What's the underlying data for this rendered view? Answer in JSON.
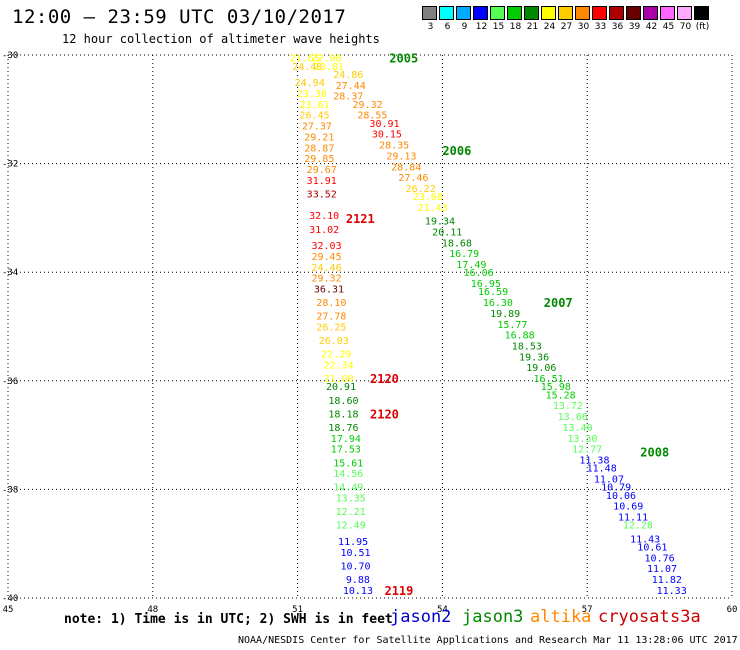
{
  "header": {
    "title": "12:00 – 23:59 UTC 03/10/2017",
    "subtitle": "12 hour collection of altimeter wave heights"
  },
  "colorbar": {
    "labels": [
      "3",
      "6",
      "9",
      "12",
      "15",
      "18",
      "21",
      "24",
      "27",
      "30",
      "33",
      "36",
      "39",
      "42",
      "45",
      "70",
      "(ft)"
    ],
    "colors": [
      "#808080",
      "#00ffff",
      "#00aaff",
      "#0000ff",
      "#55ff55",
      "#00cc00",
      "#008800",
      "#ffff00",
      "#ffcc00",
      "#ff8800",
      "#ff0000",
      "#aa0000",
      "#660000",
      "#aa00aa",
      "#ff66ff",
      "#ffaaff",
      "#000000"
    ]
  },
  "note": "note: 1) Time is in UTC; 2) SWH is in feet",
  "footer": "NOAA/NESDIS Center for Satellite Applications and Research   Mar 11 13:28:06 UTC 2017",
  "legend": [
    {
      "name": "jason2",
      "color": "#0000cc"
    },
    {
      "name": "jason3",
      "color": "#008800"
    },
    {
      "name": "altika",
      "color": "#ff8800"
    },
    {
      "name": "cryosat",
      "color": "#cc0000"
    },
    {
      "name": "s3a",
      "color": "#cc0000"
    }
  ],
  "chart_data": {
    "type": "scatter",
    "x_ticks": [
      45,
      48,
      51,
      54,
      57,
      60
    ],
    "y_ticks": [
      -30,
      -32,
      -34,
      -36,
      -38,
      -40
    ],
    "xlim": [
      45,
      60
    ],
    "ylim": [
      -40,
      -30
    ],
    "grid": true,
    "time_labels": [
      {
        "text": "2005",
        "lon": 52.9,
        "lat": -30.05,
        "color": "#008800"
      },
      {
        "text": "2006",
        "lon": 54.0,
        "lat": -31.75,
        "color": "#008800"
      },
      {
        "text": "2121",
        "lon": 52.0,
        "lat": -33.0,
        "color": "#dd0000"
      },
      {
        "text": "2007",
        "lon": 56.1,
        "lat": -34.55,
        "color": "#008800"
      },
      {
        "text": "2120",
        "lon": 52.5,
        "lat": -35.95,
        "color": "#dd0000"
      },
      {
        "text": "2120",
        "lon": 52.5,
        "lat": -36.6,
        "color": "#dd0000"
      },
      {
        "text": "2008",
        "lon": 58.1,
        "lat": -37.3,
        "color": "#008800"
      },
      {
        "text": "2119",
        "lon": 52.8,
        "lat": -39.85,
        "color": "#dd0000"
      }
    ],
    "series": [
      {
        "points": [
          {
            "v": "21.65",
            "lon": 51.15,
            "lat": -30.05
          },
          {
            "v": "22.08",
            "lon": 51.6,
            "lat": -30.05
          },
          {
            "v": "24.40",
            "lon": 51.2,
            "lat": -30.2
          },
          {
            "v": "23.81",
            "lon": 51.65,
            "lat": -30.2
          },
          {
            "v": "24.86",
            "lon": 52.05,
            "lat": -30.35
          },
          {
            "v": "24.94",
            "lon": 51.25,
            "lat": -30.5
          },
          {
            "v": "27.44",
            "lon": 52.1,
            "lat": -30.55
          },
          {
            "v": "23.36",
            "lon": 51.3,
            "lat": -30.7
          },
          {
            "v": "28.37",
            "lon": 52.05,
            "lat": -30.75
          },
          {
            "v": "23.61",
            "lon": 51.35,
            "lat": -30.9
          },
          {
            "v": "29.32",
            "lon": 52.45,
            "lat": -30.9
          },
          {
            "v": "26.45",
            "lon": 51.35,
            "lat": -31.1
          },
          {
            "v": "28.55",
            "lon": 52.55,
            "lat": -31.1
          },
          {
            "v": "27.37",
            "lon": 51.4,
            "lat": -31.3
          },
          {
            "v": "30.91",
            "lon": 52.8,
            "lat": -31.25
          },
          {
            "v": "29.21",
            "lon": 51.45,
            "lat": -31.5
          },
          {
            "v": "30.15",
            "lon": 52.85,
            "lat": -31.45
          },
          {
            "v": "28.35",
            "lon": 53.0,
            "lat": -31.65
          },
          {
            "v": "28.87",
            "lon": 51.45,
            "lat": -31.7
          },
          {
            "v": "29.13",
            "lon": 53.15,
            "lat": -31.85
          },
          {
            "v": "29.85",
            "lon": 51.45,
            "lat": -31.9
          },
          {
            "v": "28.84",
            "lon": 53.25,
            "lat": -32.05
          },
          {
            "v": "29.67",
            "lon": 51.5,
            "lat": -32.1
          },
          {
            "v": "27.46",
            "lon": 53.4,
            "lat": -32.25
          },
          {
            "v": "31.91",
            "lon": 51.5,
            "lat": -32.3
          },
          {
            "v": "26.22",
            "lon": 53.55,
            "lat": -32.45
          },
          {
            "v": "33.52",
            "lon": 51.5,
            "lat": -32.55
          },
          {
            "v": "23.68",
            "lon": 53.7,
            "lat": -32.6
          },
          {
            "v": "32.10",
            "lon": 51.55,
            "lat": -32.95
          },
          {
            "v": "21.43",
            "lon": 53.8,
            "lat": -32.8
          },
          {
            "v": "19.34",
            "lon": 53.95,
            "lat": -33.05
          },
          {
            "v": "31.02",
            "lon": 51.55,
            "lat": -33.2
          },
          {
            "v": "20.11",
            "lon": 54.1,
            "lat": -33.25
          },
          {
            "v": "32.03",
            "lon": 51.6,
            "lat": -33.5
          },
          {
            "v": "18.68",
            "lon": 54.3,
            "lat": -33.45
          },
          {
            "v": "29.45",
            "lon": 51.6,
            "lat": -33.7
          },
          {
            "v": "16.79",
            "lon": 54.45,
            "lat": -33.65
          },
          {
            "v": "24.46",
            "lon": 51.6,
            "lat": -33.9
          },
          {
            "v": "17.49",
            "lon": 54.6,
            "lat": -33.85
          },
          {
            "v": "29.32",
            "lon": 51.6,
            "lat": -34.1
          },
          {
            "v": "16.06",
            "lon": 54.75,
            "lat": -34.0
          },
          {
            "v": "16.95",
            "lon": 54.9,
            "lat": -34.2
          },
          {
            "v": "36.31",
            "lon": 51.65,
            "lat": -34.3
          },
          {
            "v": "16.59",
            "lon": 55.05,
            "lat": -34.35
          },
          {
            "v": "28.10",
            "lon": 51.7,
            "lat": -34.55
          },
          {
            "v": "16.30",
            "lon": 55.15,
            "lat": -34.55
          },
          {
            "v": "19.89",
            "lon": 55.3,
            "lat": -34.75
          },
          {
            "v": "27.78",
            "lon": 51.7,
            "lat": -34.8
          },
          {
            "v": "15.77",
            "lon": 55.45,
            "lat": -34.95
          },
          {
            "v": "26.25",
            "lon": 51.7,
            "lat": -35.0
          },
          {
            "v": "16.88",
            "lon": 55.6,
            "lat": -35.15
          },
          {
            "v": "26.03",
            "lon": 51.75,
            "lat": -35.25
          },
          {
            "v": "18.53",
            "lon": 55.75,
            "lat": -35.35
          },
          {
            "v": "22.29",
            "lon": 51.8,
            "lat": -35.5
          },
          {
            "v": "19.36",
            "lon": 55.9,
            "lat": -35.55
          },
          {
            "v": "22.34",
            "lon": 51.85,
            "lat": -35.7
          },
          {
            "v": "19.06",
            "lon": 56.05,
            "lat": -35.75
          },
          {
            "v": "21.00",
            "lon": 51.85,
            "lat": -35.95
          },
          {
            "v": "16.51",
            "lon": 56.2,
            "lat": -35.95
          },
          {
            "v": "20.91",
            "lon": 51.9,
            "lat": -36.1
          },
          {
            "v": "15.98",
            "lon": 56.35,
            "lat": -36.1
          },
          {
            "v": "15.28",
            "lon": 56.45,
            "lat": -36.25
          },
          {
            "v": "18.60",
            "lon": 51.95,
            "lat": -36.35
          },
          {
            "v": "13.72",
            "lon": 56.6,
            "lat": -36.45
          },
          {
            "v": "18.18",
            "lon": 51.95,
            "lat": -36.6
          },
          {
            "v": "13.66",
            "lon": 56.7,
            "lat": -36.65
          },
          {
            "v": "18.76",
            "lon": 51.95,
            "lat": -36.85
          },
          {
            "v": "13.40",
            "lon": 56.8,
            "lat": -36.85
          },
          {
            "v": "17.94",
            "lon": 52.0,
            "lat": -37.05
          },
          {
            "v": "13.30",
            "lon": 56.9,
            "lat": -37.05
          },
          {
            "v": "17.53",
            "lon": 52.0,
            "lat": -37.25
          },
          {
            "v": "12.77",
            "lon": 57.0,
            "lat": -37.25
          },
          {
            "v": "11.38",
            "lon": 57.15,
            "lat": -37.45
          },
          {
            "v": "15.61",
            "lon": 52.05,
            "lat": -37.5
          },
          {
            "v": "11.48",
            "lon": 57.3,
            "lat": -37.6
          },
          {
            "v": "14.56",
            "lon": 52.05,
            "lat": -37.7
          },
          {
            "v": "11.07",
            "lon": 57.45,
            "lat": -37.8
          },
          {
            "v": "14.49",
            "lon": 52.05,
            "lat": -37.95
          },
          {
            "v": "10.79",
            "lon": 57.6,
            "lat": -37.95
          },
          {
            "v": "10.06",
            "lon": 57.7,
            "lat": -38.1
          },
          {
            "v": "13.35",
            "lon": 52.1,
            "lat": -38.15
          },
          {
            "v": "10.69",
            "lon": 57.85,
            "lat": -38.3
          },
          {
            "v": "12.21",
            "lon": 52.1,
            "lat": -38.4
          },
          {
            "v": "11.11",
            "lon": 57.95,
            "lat": -38.5
          },
          {
            "v": "12.49",
            "lon": 52.1,
            "lat": -38.65
          },
          {
            "v": "12.28",
            "lon": 58.05,
            "lat": -38.65
          },
          {
            "v": "11.43",
            "lon": 58.2,
            "lat": -38.9
          },
          {
            "v": "11.95",
            "lon": 52.15,
            "lat": -38.95
          },
          {
            "v": "10.61",
            "lon": 58.35,
            "lat": -39.05
          },
          {
            "v": "10.51",
            "lon": 52.2,
            "lat": -39.15
          },
          {
            "v": "10.76",
            "lon": 58.5,
            "lat": -39.25
          },
          {
            "v": "10.70",
            "lon": 52.2,
            "lat": -39.4
          },
          {
            "v": "11.07",
            "lon": 58.55,
            "lat": -39.45
          },
          {
            "v": "9.88",
            "lon": 52.25,
            "lat": -39.65
          },
          {
            "v": "11.82",
            "lon": 58.65,
            "lat": -39.65
          },
          {
            "v": "10.13",
            "lon": 52.25,
            "lat": -39.85
          },
          {
            "v": "11.33",
            "lon": 58.75,
            "lat": -39.85
          }
        ]
      }
    ]
  }
}
